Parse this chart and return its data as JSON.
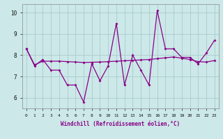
{
  "xlabel": "Windchill (Refroidissement éolien,°C)",
  "hours": [
    0,
    1,
    2,
    3,
    4,
    5,
    6,
    7,
    8,
    9,
    10,
    11,
    12,
    13,
    14,
    15,
    16,
    17,
    18,
    19,
    20,
    21,
    22,
    23
  ],
  "volatile_y": [
    8.3,
    7.5,
    7.8,
    7.3,
    7.3,
    6.6,
    6.6,
    5.8,
    7.6,
    6.8,
    7.5,
    9.5,
    6.6,
    8.0,
    7.3,
    6.6,
    10.1,
    8.3,
    8.3,
    7.9,
    7.9,
    7.6,
    8.1,
    8.7
  ],
  "smooth_y": [
    8.3,
    7.55,
    7.72,
    7.72,
    7.72,
    7.7,
    7.68,
    7.66,
    7.67,
    7.68,
    7.7,
    7.72,
    7.74,
    7.76,
    7.78,
    7.8,
    7.84,
    7.88,
    7.92,
    7.86,
    7.8,
    7.7,
    7.68,
    7.75
  ],
  "line_color": "#880088",
  "bg_color": "#cce8e8",
  "grid_color": "#aacccc",
  "ylim": [
    5.5,
    10.4
  ],
  "xlim": [
    -0.5,
    23.5
  ],
  "yticks": [
    6,
    7,
    8,
    9,
    10
  ],
  "xtick_fontsize": 4.5,
  "ytick_fontsize": 5.5,
  "xlabel_fontsize": 5.5
}
